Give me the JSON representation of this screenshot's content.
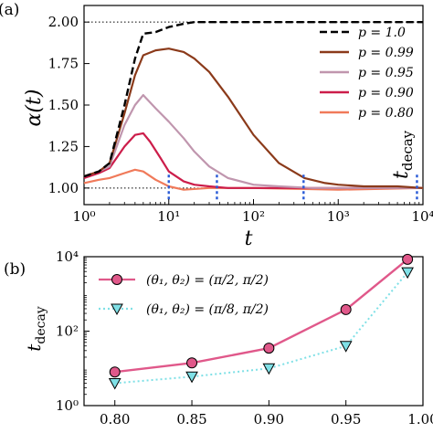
{
  "chart_data": [
    {
      "panel_label": "(a)",
      "type": "line",
      "xscale": "log",
      "xlim": [
        1,
        10000
      ],
      "ylim": [
        0.9,
        2.1
      ],
      "xlabel": "t",
      "ylabel": "α(t)",
      "xticks": [
        "10⁰",
        "10¹",
        "10²",
        "10³",
        "10⁴"
      ],
      "yticks": [
        "1.00",
        "1.25",
        "1.50",
        "1.75",
        "2.00"
      ],
      "reference_lines": [
        1.0,
        2.0
      ],
      "legend_position": "top-right",
      "annotation": "t_decay",
      "annotation_parts": {
        "base": "t",
        "sub": "decay"
      },
      "decay_markers": [
        {
          "x": 10,
          "color": "#2a5bd7"
        },
        {
          "x": 37,
          "color": "#2a5bd7"
        },
        {
          "x": 390,
          "color": "#2a5bd7"
        },
        {
          "x": 8500,
          "color": "#2a5bd7"
        }
      ],
      "series": [
        {
          "name": "p = 1.0",
          "color": "#000000",
          "dash": true,
          "x": [
            1,
            1.5,
            2,
            3,
            4,
            5,
            7,
            10,
            15,
            20,
            30,
            50,
            100,
            10000
          ],
          "y": [
            1.07,
            1.1,
            1.15,
            1.5,
            1.78,
            1.93,
            1.94,
            1.97,
            1.99,
            2.0,
            2.0,
            2.0,
            2.0,
            2.0
          ]
        },
        {
          "name": "p = 0.99",
          "color": "#8b3a1a",
          "dash": false,
          "x": [
            1,
            1.5,
            2,
            3,
            4,
            5,
            7,
            10,
            15,
            20,
            30,
            50,
            100,
            200,
            400,
            700,
            1000,
            2000,
            5000,
            10000
          ],
          "y": [
            1.07,
            1.1,
            1.15,
            1.45,
            1.68,
            1.8,
            1.83,
            1.84,
            1.82,
            1.78,
            1.7,
            1.55,
            1.32,
            1.15,
            1.06,
            1.03,
            1.02,
            1.01,
            1.01,
            1.0
          ]
        },
        {
          "name": "p = 0.95",
          "color": "#c096ae",
          "dash": false,
          "x": [
            1,
            1.5,
            2,
            3,
            4,
            5,
            7,
            10,
            15,
            20,
            30,
            50,
            100,
            200,
            500,
            1000,
            10000
          ],
          "y": [
            1.07,
            1.1,
            1.13,
            1.38,
            1.5,
            1.56,
            1.48,
            1.4,
            1.3,
            1.22,
            1.13,
            1.06,
            1.02,
            1.01,
            1.0,
            1.0,
            1.0
          ]
        },
        {
          "name": "p = 0.90",
          "color": "#cc1d4a",
          "dash": false,
          "x": [
            1,
            1.5,
            2,
            3,
            4,
            5,
            6,
            8,
            10,
            15,
            20,
            30,
            50,
            100,
            1000,
            10000
          ],
          "y": [
            1.06,
            1.09,
            1.12,
            1.25,
            1.32,
            1.33,
            1.28,
            1.18,
            1.1,
            1.04,
            1.02,
            1.01,
            1.0,
            1.0,
            1.0,
            1.0
          ]
        },
        {
          "name": "p = 0.80",
          "color": "#f07a5a",
          "dash": false,
          "x": [
            1,
            1.5,
            2,
            3,
            4,
            5,
            7,
            10,
            15,
            30,
            100,
            1000,
            10000
          ],
          "y": [
            1.03,
            1.05,
            1.06,
            1.09,
            1.11,
            1.1,
            1.05,
            1.01,
            0.99,
            1.0,
            1.0,
            0.99,
            1.0
          ]
        }
      ]
    },
    {
      "panel_label": "(b)",
      "type": "line",
      "yscale": "log",
      "xlim": [
        0.78,
        1.0
      ],
      "ylim": [
        1,
        10000
      ],
      "xlabel": "",
      "ylabel": "t_decay",
      "ylabel_parts": {
        "base": "t",
        "sub": "decay"
      },
      "xticks": [
        "0.80",
        "0.85",
        "0.90",
        "0.95",
        "1.00"
      ],
      "yticks": [
        "10⁰",
        "10²",
        "10⁴"
      ],
      "legend_position": "top-left",
      "series": [
        {
          "name": "(θ₁, θ₂) = (π/2, π/2)",
          "color": "#e0588a",
          "marker": "circle",
          "dash": false,
          "x": [
            0.8,
            0.85,
            0.9,
            0.95,
            0.99
          ],
          "y": [
            8,
            14,
            35,
            380,
            8500
          ]
        },
        {
          "name": "(θ₁, θ₂) = (π/8, π/2)",
          "color": "#7fe0e6",
          "marker": "triangle-down",
          "dash": true,
          "x": [
            0.8,
            0.85,
            0.9,
            0.95,
            0.99
          ],
          "y": [
            4,
            6,
            10,
            40,
            3800
          ]
        }
      ]
    }
  ]
}
